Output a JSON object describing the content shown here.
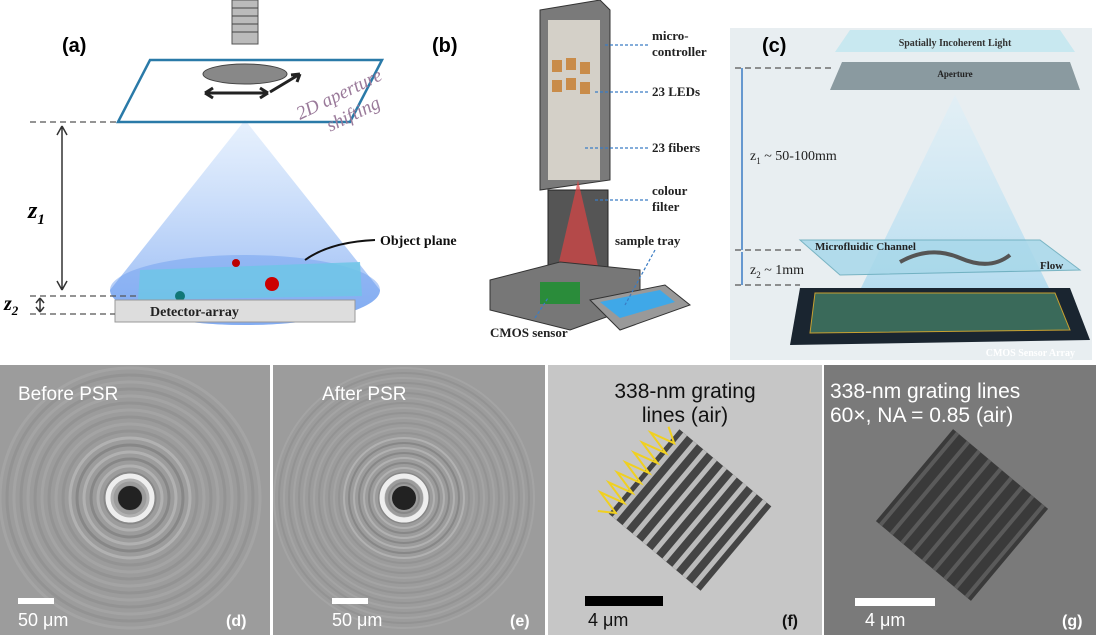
{
  "panel_a": {
    "label": "(a)",
    "aperture_text": [
      "2D aperture",
      "shifting"
    ],
    "z1": {
      "symbol": "z",
      "subscript": "1"
    },
    "z2": {
      "symbol": "z",
      "subscript": "2"
    },
    "object_plane": "Object plane",
    "detector": "Detector-array"
  },
  "panel_b": {
    "label": "(b)",
    "callouts": [
      [
        "micro-",
        "controller"
      ],
      [
        "23 LEDs"
      ],
      [
        "23 fibers"
      ],
      [
        "colour",
        "filter"
      ],
      [
        "sample tray"
      ],
      [
        "CMOS sensor"
      ]
    ]
  },
  "panel_c": {
    "label": "(c)",
    "light": "Spatially Incoherent Light",
    "aperture": "Aperture",
    "z1": {
      "symbol": "z",
      "subscript": "1",
      "rest": " ~ 50-100mm"
    },
    "z2": {
      "symbol": "z",
      "subscript": "2",
      "rest": " ~ 1mm"
    },
    "channel": "Microfluidic Channel",
    "flow": "Flow",
    "sensor": "CMOS Sensor Array"
  },
  "panel_d": {
    "title": "Before PSR",
    "scale": "50 μm",
    "label": "(d)"
  },
  "panel_e": {
    "title": "After PSR",
    "scale": "50 μm",
    "label": "(e)"
  },
  "panel_f": {
    "title": [
      "338-nm grating",
      "lines (air)"
    ],
    "scale": "4 μm",
    "label": "(f)"
  },
  "panel_g": {
    "title": [
      "338-nm grating lines",
      "60×, NA = 0.85 (air)"
    ],
    "scale": "4 μm",
    "label": "(g)"
  }
}
